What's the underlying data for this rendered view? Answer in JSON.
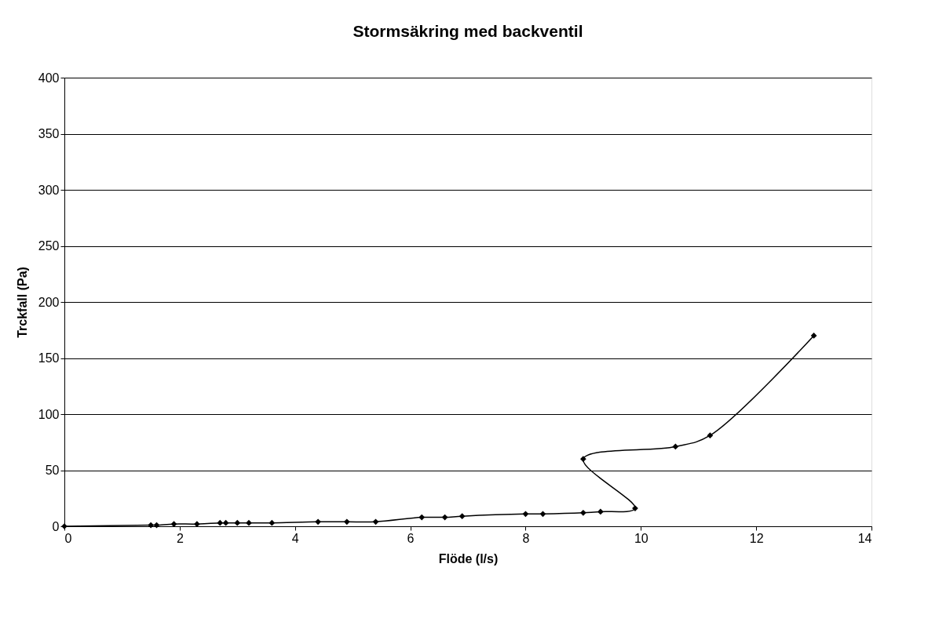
{
  "chart_data": {
    "type": "line",
    "title": "Stormsäkring med backventil",
    "xlabel": "Flöde (l/s)",
    "ylabel": "Trckfall (Pa)",
    "series": [
      {
        "color": "#000000",
        "x": [
          0,
          1.5,
          1.6,
          1.9,
          2.3,
          2.7,
          2.8,
          3.0,
          3.2,
          3.6,
          4.4,
          4.9,
          5.4,
          6.2,
          6.6,
          6.9,
          8.0,
          8.3,
          9.0,
          9.3,
          9.9,
          9.0,
          10.6,
          11.2,
          13.0
        ],
        "values": [
          0,
          1,
          1,
          2,
          2,
          3,
          3,
          3,
          3,
          3,
          4,
          4,
          4,
          8,
          8,
          9,
          11,
          11,
          12,
          13,
          16,
          60,
          71,
          81,
          170
        ]
      }
    ],
    "xlim": [
      0,
      14
    ],
    "xticks": [
      0,
      2,
      4,
      6,
      8,
      10,
      12,
      14
    ],
    "ylim": [
      0,
      400
    ],
    "yticks": [
      0,
      50,
      100,
      150,
      200,
      250,
      300,
      350,
      400
    ],
    "grid": "y",
    "legend": false,
    "marker": "diamond",
    "line_style": "solid"
  }
}
